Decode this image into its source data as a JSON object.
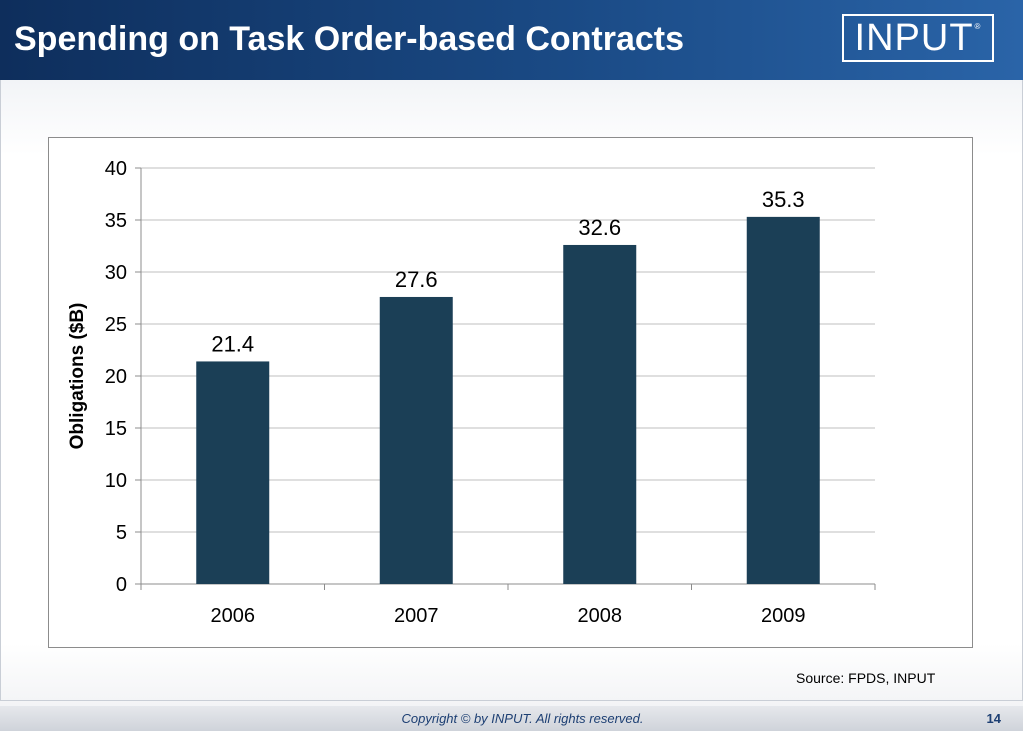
{
  "slide": {
    "title": "Spending on Task Order-based Contracts",
    "logo_text": "INPUT",
    "logo_mark": "®",
    "source": "Source:  FPDS, INPUT",
    "copyright": "Copyright © by INPUT. All rights reserved.",
    "page_number": "14"
  },
  "colors": {
    "header": "#1a4a85",
    "bar": "#1b3f56",
    "gridline": "#bfbfbf"
  },
  "chart_data": {
    "type": "bar",
    "title": "",
    "xlabel": "",
    "ylabel": "Obligations ($B)",
    "categories": [
      "2006",
      "2007",
      "2008",
      "2009"
    ],
    "values": [
      21.4,
      27.6,
      32.6,
      35.3
    ],
    "data_labels": [
      "21.4",
      "27.6",
      "32.6",
      "35.3"
    ],
    "ylim": [
      0,
      40
    ],
    "yticks": [
      0,
      5,
      10,
      15,
      20,
      25,
      30,
      35,
      40
    ],
    "grid": true,
    "legend": "none"
  }
}
